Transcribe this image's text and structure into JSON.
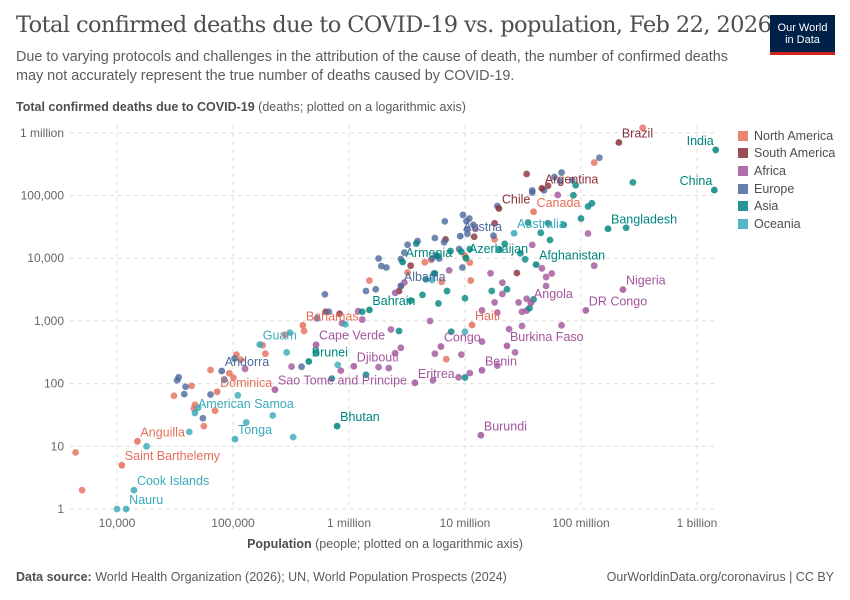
{
  "header": {
    "title": "Total confirmed deaths due to COVID-19 vs. population, Feb 22, 2026",
    "subtitle": "Due to varying protocols and challenges in the attribution of the cause of death, the number of confirmed deaths may not accurately represent the true number of deaths caused by COVID-19.",
    "logo_line1": "Our World",
    "logo_line2": "in Data"
  },
  "footer": {
    "source_label": "Data source:",
    "source_text": "World Health Organization (2026); UN, World Population Prospects (2024)",
    "link": "OurWorldinData.org/coronavirus | CC BY"
  },
  "chart_data": {
    "type": "scatter",
    "title": "Total confirmed deaths due to COVID-19 vs. population, Feb 22, 2026",
    "ylabel_bold": "Total confirmed deaths due to COVID-19",
    "ylabel_rest": "(deaths; plotted on a logarithmic axis)",
    "xlabel_bold": "Population",
    "xlabel_rest": "(people; plotted on a logarithmic axis)",
    "x_scale": "log",
    "y_scale": "log",
    "xlim": [
      3200,
      1500000000
    ],
    "ylim": [
      1,
      1000000
    ],
    "grid": true,
    "legend_position": "right",
    "x_ticks": [
      {
        "v": 10000,
        "label": "10,000"
      },
      {
        "v": 100000,
        "label": "100,000"
      },
      {
        "v": 1000000,
        "label": "1 million"
      },
      {
        "v": 10000000,
        "label": "10 million"
      },
      {
        "v": 100000000,
        "label": "100 million"
      },
      {
        "v": 1000000000,
        "label": "1 billion"
      }
    ],
    "y_ticks": [
      {
        "v": 1,
        "label": "1"
      },
      {
        "v": 10,
        "label": "10"
      },
      {
        "v": 100,
        "label": "100"
      },
      {
        "v": 1000,
        "label": "1,000"
      },
      {
        "v": 10000,
        "label": "10,000"
      },
      {
        "v": 100000,
        "label": "100,000"
      },
      {
        "v": 1000000,
        "label": "1 million"
      }
    ],
    "series": [
      {
        "name": "North America",
        "color": "#E56E5A",
        "points": [
          [
            340000000,
            1200000
          ],
          [
            130000000,
            335000
          ],
          [
            18000000,
            20000
          ],
          [
            11000000,
            8500
          ],
          [
            11200000,
            4400
          ],
          [
            10000000,
            11000
          ],
          [
            6300000,
            4200
          ],
          [
            4500000,
            8600
          ],
          [
            5100000,
            9400
          ],
          [
            2800000,
            3600
          ],
          [
            6900000,
            245
          ],
          [
            1500000,
            4400
          ],
          [
            3200000,
            5900
          ],
          [
            280000,
            600
          ],
          [
            410000,
            690
          ],
          [
            180000,
            410
          ],
          [
            117000,
            240
          ],
          [
            101000,
            124
          ],
          [
            93000,
            146
          ],
          [
            47000,
            46
          ],
          [
            70000,
            37
          ],
          [
            64000,
            165
          ],
          [
            107000,
            290
          ],
          [
            190000,
            300
          ],
          [
            44000,
            92
          ],
          [
            46000,
            40
          ],
          [
            31000,
            64
          ],
          [
            4400,
            8
          ],
          [
            56000,
            21
          ],
          [
            5000,
            2
          ]
        ]
      },
      {
        "name": "South America",
        "color": "#883039",
        "points": [
          [
            52000000,
            143000
          ],
          [
            34000000,
            220000
          ],
          [
            18000000,
            36000
          ],
          [
            12000000,
            22000
          ],
          [
            28000000,
            5800
          ],
          [
            6800000,
            19900
          ],
          [
            3400000,
            7600
          ],
          [
            830000,
            1300
          ],
          [
            630000,
            1400
          ],
          [
            2700000,
            3000
          ]
        ]
      },
      {
        "name": "Africa",
        "color": "#A2559C",
        "points": [
          [
            130000000,
            7600
          ],
          [
            115000000,
            24800
          ],
          [
            63000000,
            102000
          ],
          [
            68000000,
            850
          ],
          [
            56000000,
            5700
          ],
          [
            50000000,
            3600
          ],
          [
            46000000,
            6900
          ],
          [
            50000000,
            5000
          ],
          [
            38000000,
            16300
          ],
          [
            34000000,
            2250
          ],
          [
            34000000,
            1460
          ],
          [
            31000000,
            1400
          ],
          [
            29000000,
            1970
          ],
          [
            31000000,
            830
          ],
          [
            27000000,
            315
          ],
          [
            24000000,
            740
          ],
          [
            21000000,
            2690
          ],
          [
            21000000,
            4070
          ],
          [
            18000000,
            1970
          ],
          [
            19000000,
            194
          ],
          [
            19000000,
            1360
          ],
          [
            16600000,
            5740
          ],
          [
            14000000,
            468
          ],
          [
            14000000,
            1470
          ],
          [
            12300000,
            29400
          ],
          [
            11000000,
            147
          ],
          [
            9300000,
            290
          ],
          [
            8800000,
            126
          ],
          [
            7300000,
            6400
          ],
          [
            5300000,
            113
          ],
          [
            5500000,
            300
          ],
          [
            5000000,
            997
          ],
          [
            3000000,
            4100
          ],
          [
            2800000,
            372
          ],
          [
            2500000,
            2800
          ],
          [
            2500000,
            306
          ],
          [
            2300000,
            730
          ],
          [
            2200000,
            177
          ],
          [
            1800000,
            183
          ],
          [
            1300000,
            1050
          ],
          [
            1200000,
            1430
          ],
          [
            850000,
            161
          ],
          [
            127000,
            172
          ],
          [
            870000,
            921
          ],
          [
            320000,
            187
          ]
        ]
      },
      {
        "name": "Europe",
        "color": "#4C6A9C",
        "points": [
          [
            144000000,
            400000
          ],
          [
            84000000,
            175000
          ],
          [
            68000000,
            232000
          ],
          [
            66000000,
            168000
          ],
          [
            59000000,
            197000
          ],
          [
            48000000,
            121000
          ],
          [
            38000000,
            120000
          ],
          [
            38000000,
            112000
          ],
          [
            19000000,
            68000
          ],
          [
            17600000,
            22900
          ],
          [
            11800000,
            34000
          ],
          [
            10900000,
            43000
          ],
          [
            10500000,
            24500
          ],
          [
            10300000,
            39000
          ],
          [
            10400000,
            29000
          ],
          [
            9600000,
            49000
          ],
          [
            9500000,
            7100
          ],
          [
            8900000,
            14000
          ],
          [
            6600000,
            18000
          ],
          [
            6700000,
            38700
          ],
          [
            6000000,
            9900
          ],
          [
            5600000,
            11000
          ],
          [
            5500000,
            21000
          ],
          [
            5500000,
            5700
          ],
          [
            5200000,
            9900
          ],
          [
            3900000,
            18800
          ],
          [
            3000000,
            12300
          ],
          [
            3200000,
            16400
          ],
          [
            2800000,
            9700
          ],
          [
            1800000,
            9900
          ],
          [
            2100000,
            7100
          ],
          [
            1900000,
            7500
          ],
          [
            1400000,
            3000
          ],
          [
            1700000,
            3200
          ],
          [
            620000,
            2650
          ],
          [
            670000,
            1400
          ],
          [
            530000,
            1100
          ],
          [
            390000,
            186
          ],
          [
            103000,
            250
          ],
          [
            84000,
            116
          ],
          [
            64000,
            67
          ],
          [
            55000,
            28
          ],
          [
            39000,
            89
          ],
          [
            38000,
            68
          ],
          [
            34000,
            126
          ],
          [
            33000,
            113
          ]
        ]
      },
      {
        "name": "Asia",
        "color": "#00847E",
        "points": [
          [
            280000000,
            162000
          ],
          [
            245000000,
            30600
          ],
          [
            124000000,
            75000
          ],
          [
            115000000,
            66800
          ],
          [
            100000000,
            43000
          ],
          [
            90000000,
            146000
          ],
          [
            86000000,
            101000
          ],
          [
            71000000,
            34000
          ],
          [
            54000000,
            19500
          ],
          [
            52000000,
            36000
          ],
          [
            45000000,
            25400
          ],
          [
            33000000,
            9600
          ],
          [
            36000000,
            1600
          ],
          [
            35000000,
            37000
          ],
          [
            39000000,
            2200
          ],
          [
            30000000,
            12000
          ],
          [
            22000000,
            16900
          ],
          [
            20000000,
            13700
          ],
          [
            23000000,
            3200
          ],
          [
            17000000,
            3000
          ],
          [
            11000000,
            14000
          ],
          [
            10000000,
            2300
          ],
          [
            10000000,
            125
          ],
          [
            9300000,
            12700
          ],
          [
            7600000,
            671
          ],
          [
            5800000,
            10900
          ],
          [
            7000000,
            2990
          ],
          [
            5900000,
            1900
          ],
          [
            5400000,
            5700
          ],
          [
            4600000,
            4600
          ],
          [
            4300000,
            2600
          ],
          [
            3800000,
            17100
          ],
          [
            3400000,
            2100
          ],
          [
            2700000,
            690
          ],
          [
            1400000,
            138
          ],
          [
            1300000,
            1400
          ],
          [
            710000,
            120
          ],
          [
            520000,
            316
          ],
          [
            7500000,
            13000
          ]
        ]
      },
      {
        "name": "Oceania",
        "color": "#38AABA",
        "points": [
          [
            5200000,
            4500
          ],
          [
            10000000,
            670
          ],
          [
            930000,
            885
          ],
          [
            800000,
            199
          ],
          [
            310000,
            650
          ],
          [
            290000,
            314
          ],
          [
            330000,
            14
          ],
          [
            220000,
            31
          ],
          [
            130000,
            24
          ],
          [
            110000,
            65
          ],
          [
            50000,
            41
          ],
          [
            42000,
            17
          ],
          [
            18000,
            10
          ],
          [
            10000,
            1
          ]
        ]
      }
    ],
    "labeled_points": [
      {
        "label": "Brazil",
        "series": "South America",
        "x": 212000000,
        "y": 700000
      },
      {
        "label": "India",
        "series": "Asia",
        "x": 1450000000,
        "y": 533000
      },
      {
        "label": "China",
        "series": "Asia",
        "x": 1410000000,
        "y": 122000
      },
      {
        "label": "Argentina",
        "series": "South America",
        "x": 46000000,
        "y": 130000
      },
      {
        "label": "Chile",
        "series": "South America",
        "x": 19600000,
        "y": 62000
      },
      {
        "label": "Canada",
        "series": "North America",
        "x": 39000000,
        "y": 55000
      },
      {
        "label": "Austria",
        "series": "Europe",
        "x": 9100000,
        "y": 22500
      },
      {
        "label": "Australia",
        "series": "Oceania",
        "x": 26500000,
        "y": 25000
      },
      {
        "label": "Bangladesh",
        "series": "Asia",
        "x": 171000000,
        "y": 29500
      },
      {
        "label": "Armenia",
        "series": "Asia",
        "x": 2900000,
        "y": 8700
      },
      {
        "label": "Azerbaijan",
        "series": "Asia",
        "x": 10200000,
        "y": 10000
      },
      {
        "label": "Afghanistan",
        "series": "Asia",
        "x": 41000000,
        "y": 7900
      },
      {
        "label": "Albania",
        "series": "Europe",
        "x": 2800000,
        "y": 3600
      },
      {
        "label": "Bahrain",
        "series": "Asia",
        "x": 1500000,
        "y": 1500
      },
      {
        "label": "Nigeria",
        "series": "Africa",
        "x": 230000000,
        "y": 3150
      },
      {
        "label": "DR Congo",
        "series": "Africa",
        "x": 110000000,
        "y": 1470
      },
      {
        "label": "Angola",
        "series": "Africa",
        "x": 37000000,
        "y": 1940
      },
      {
        "label": "Haiti",
        "series": "North America",
        "x": 11500000,
        "y": 860
      },
      {
        "label": "Bahamas",
        "series": "North America",
        "x": 400000,
        "y": 850
      },
      {
        "label": "Cape Verde",
        "series": "Africa",
        "x": 520000,
        "y": 417
      },
      {
        "label": "Guam",
        "series": "Oceania",
        "x": 170000,
        "y": 420
      },
      {
        "label": "Congo",
        "series": "Africa",
        "x": 6200000,
        "y": 390
      },
      {
        "label": "Burkina Faso",
        "series": "Africa",
        "x": 23000000,
        "y": 400
      },
      {
        "label": "Brunei",
        "series": "Asia",
        "x": 450000,
        "y": 225
      },
      {
        "label": "Djibouti",
        "series": "Africa",
        "x": 1100000,
        "y": 189
      },
      {
        "label": "Benin",
        "series": "Africa",
        "x": 14000000,
        "y": 163
      },
      {
        "label": "Andorra",
        "series": "Europe",
        "x": 80000,
        "y": 159
      },
      {
        "label": "Eritrea",
        "series": "Africa",
        "x": 3700000,
        "y": 103
      },
      {
        "label": "Sao Tome and Principe",
        "series": "Africa",
        "x": 230000,
        "y": 80
      },
      {
        "label": "Dominica",
        "series": "North America",
        "x": 73000,
        "y": 74
      },
      {
        "label": "American Samoa",
        "series": "Oceania",
        "x": 47000,
        "y": 34
      },
      {
        "label": "Bhutan",
        "series": "Asia",
        "x": 790000,
        "y": 21
      },
      {
        "label": "Tonga",
        "series": "Oceania",
        "x": 104000,
        "y": 13
      },
      {
        "label": "Burundi",
        "series": "Africa",
        "x": 13700000,
        "y": 15
      },
      {
        "label": "Anguilla",
        "series": "North America",
        "x": 15000,
        "y": 12
      },
      {
        "label": "Saint Barthelemy",
        "series": "North America",
        "x": 11000,
        "y": 5
      },
      {
        "label": "Cook Islands",
        "series": "Oceania",
        "x": 14000,
        "y": 2
      },
      {
        "label": "Nauru",
        "series": "Oceania",
        "x": 12000,
        "y": 1
      }
    ]
  }
}
